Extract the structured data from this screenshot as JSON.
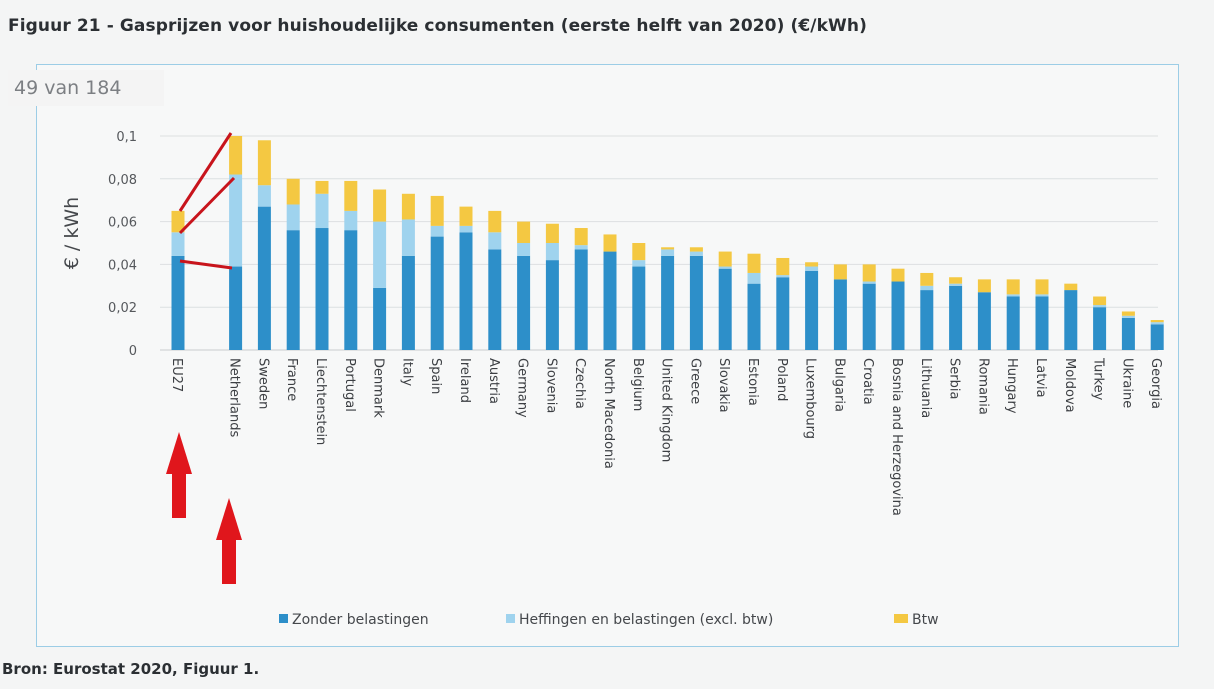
{
  "figure_title": "Figuur 21 - Gasprijzen voor huishoudelijke consumenten (eerste helft van 2020) (€/kWh)",
  "page_counter": "49 van 184",
  "source_note": "Bron: Eurostat 2020, Figuur 1.",
  "colors": {
    "zonder": "#2d8fc9",
    "heffingen": "#9fd3ee",
    "btw": "#f4c842",
    "annotation": "#d11f1f"
  },
  "chart_data": {
    "type": "bar",
    "stacked": true,
    "title": "Figuur 21 - Gasprijzen voor huishoudelijke consumenten (eerste helft van 2020) (€/kWh)",
    "ylabel": "€ / kWh",
    "xlabel": "",
    "ylim": [
      0,
      0.1
    ],
    "yticks": [
      "0",
      "0,02",
      "0,04",
      "0,06",
      "0,08",
      "0,1"
    ],
    "grid": true,
    "legend_position": "bottom",
    "categories": [
      "EU27",
      "Netherlands",
      "Sweden",
      "France",
      "Liechtenstein",
      "Portugal",
      "Denmark",
      "Italy",
      "Spain",
      "Ireland",
      "Austria",
      "Germany",
      "Slovenia",
      "Czechia",
      "North Macedonia",
      "Belgium",
      "United Kingdom",
      "Greece",
      "Slovakia",
      "Estonia",
      "Poland",
      "Luxembourg",
      "Bulgaria",
      "Croatia",
      "Bosnia and Herzegovina",
      "Lithuania",
      "Serbia",
      "Romania",
      "Hungary",
      "Latvia",
      "Moldova",
      "Turkey",
      "Ukraine",
      "Georgia"
    ],
    "series": [
      {
        "name": "Zonder belastingen",
        "color": "#2d8fc9",
        "values": [
          0.044,
          0.039,
          0.067,
          0.056,
          0.057,
          0.056,
          0.029,
          0.044,
          0.053,
          0.055,
          0.047,
          0.044,
          0.042,
          0.047,
          0.046,
          0.039,
          0.044,
          0.044,
          0.038,
          0.031,
          0.034,
          0.037,
          0.033,
          0.031,
          0.032,
          0.028,
          0.03,
          0.027,
          0.025,
          0.025,
          0.028,
          0.02,
          0.015,
          0.012
        ]
      },
      {
        "name": "Heffingen en belastingen (excl. btw)",
        "color": "#9fd3ee",
        "values": [
          0.011,
          0.043,
          0.01,
          0.012,
          0.016,
          0.009,
          0.031,
          0.017,
          0.005,
          0.003,
          0.008,
          0.006,
          0.008,
          0.002,
          0.0,
          0.003,
          0.003,
          0.002,
          0.001,
          0.005,
          0.001,
          0.002,
          0.0,
          0.001,
          0.0,
          0.002,
          0.001,
          0.0,
          0.001,
          0.001,
          0.0,
          0.001,
          0.001,
          0.001
        ]
      },
      {
        "name": "Btw",
        "color": "#f4c842",
        "values": [
          0.01,
          0.018,
          0.021,
          0.012,
          0.006,
          0.014,
          0.015,
          0.012,
          0.014,
          0.009,
          0.01,
          0.01,
          0.009,
          0.008,
          0.008,
          0.008,
          0.001,
          0.002,
          0.007,
          0.009,
          0.008,
          0.002,
          0.007,
          0.008,
          0.006,
          0.006,
          0.003,
          0.006,
          0.007,
          0.007,
          0.003,
          0.004,
          0.002,
          0.001
        ]
      }
    ]
  }
}
